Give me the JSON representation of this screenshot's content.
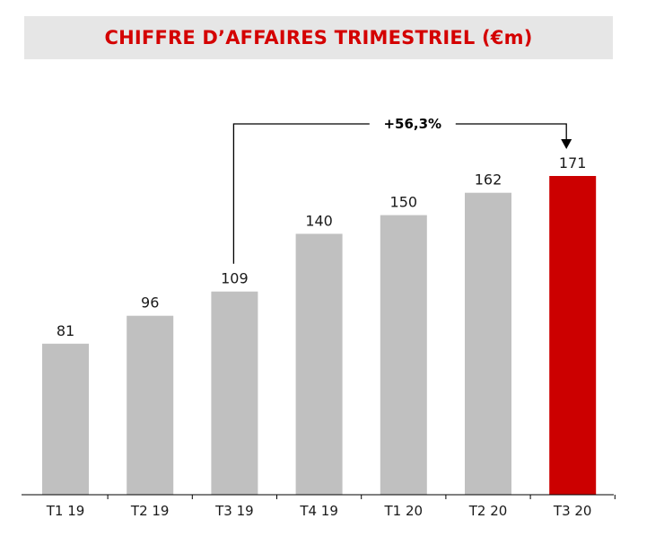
{
  "chart_data": {
    "type": "bar",
    "title": "CHIFFRE D’AFFAIRES TRIMESTRIEL (€m)",
    "categories": [
      "T1 19",
      "T2 19",
      "T3 19",
      "T4 19",
      "T1 20",
      "T2 20",
      "T3 20"
    ],
    "values": [
      81,
      96,
      109,
      140,
      150,
      162,
      171
    ],
    "highlight_index": 6,
    "ylim": [
      0,
      171
    ],
    "grid": false,
    "annotation": {
      "text": "+56,3%",
      "from_category": "T3 19",
      "to_category": "T3 20"
    }
  },
  "colors": {
    "title": "#d40000",
    "title_background": "#e6e6e6",
    "bar": "#c0c0c0",
    "highlight_bar": "#cc0000",
    "axis": "#000000",
    "text": "#1a1a1a"
  }
}
